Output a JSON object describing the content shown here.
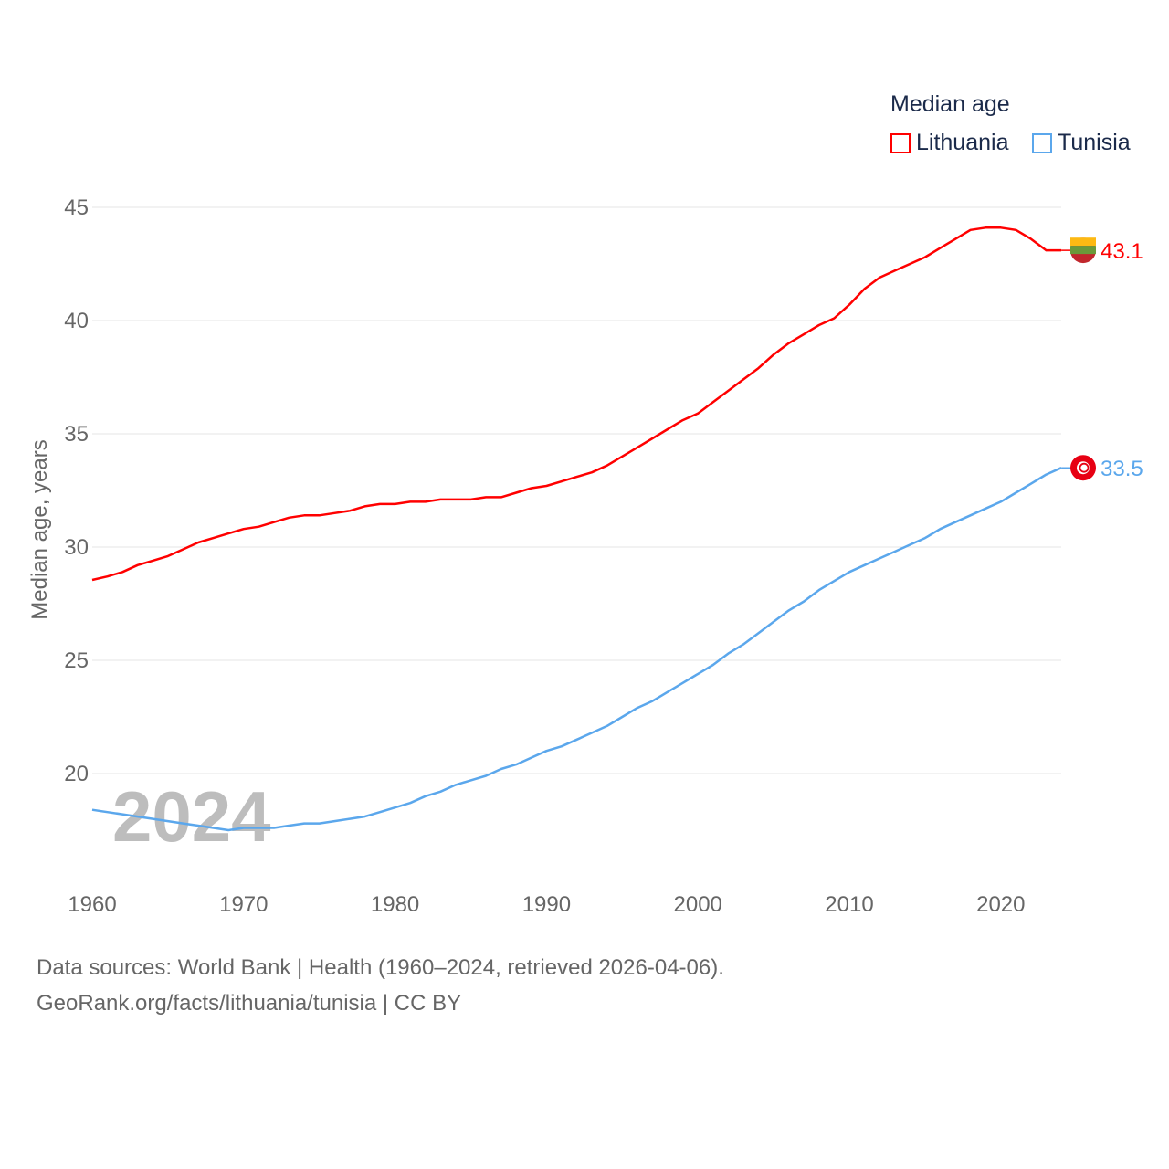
{
  "chart_data": {
    "type": "line",
    "legend_title": "Median age",
    "ylabel": "Median age, years",
    "xlabel": "",
    "ylim": [
      15.5,
      45.8
    ],
    "xlim": [
      1960,
      2024
    ],
    "yticks": [
      "20",
      "25",
      "30",
      "35",
      "40",
      "45"
    ],
    "xticks": [
      "1960",
      "1970",
      "1980",
      "1990",
      "2000",
      "2010",
      "2020"
    ],
    "year_watermark": "2024",
    "grid": true,
    "legend_position": "top-right",
    "x": [
      1960,
      1961,
      1962,
      1963,
      1964,
      1965,
      1966,
      1967,
      1968,
      1969,
      1970,
      1971,
      1972,
      1973,
      1974,
      1975,
      1976,
      1977,
      1978,
      1979,
      1980,
      1981,
      1982,
      1983,
      1984,
      1985,
      1986,
      1987,
      1988,
      1989,
      1990,
      1991,
      1992,
      1993,
      1994,
      1995,
      1996,
      1997,
      1998,
      1999,
      2000,
      2001,
      2002,
      2003,
      2004,
      2005,
      2006,
      2007,
      2008,
      2009,
      2010,
      2011,
      2012,
      2013,
      2014,
      2015,
      2016,
      2017,
      2018,
      2019,
      2020,
      2021,
      2022,
      2023,
      2024
    ],
    "series": [
      {
        "name": "Lithuania",
        "color": "#ff0000",
        "end_label": "43.1",
        "values": [
          28.55,
          28.7,
          28.9,
          29.2,
          29.4,
          29.6,
          29.9,
          30.2,
          30.4,
          30.6,
          30.8,
          30.9,
          31.1,
          31.3,
          31.4,
          31.4,
          31.5,
          31.6,
          31.8,
          31.9,
          31.9,
          32.0,
          32.0,
          32.1,
          32.1,
          32.1,
          32.2,
          32.2,
          32.4,
          32.6,
          32.7,
          32.9,
          33.1,
          33.3,
          33.6,
          34.0,
          34.4,
          34.8,
          35.2,
          35.6,
          35.9,
          36.4,
          36.9,
          37.4,
          37.9,
          38.5,
          39.0,
          39.4,
          39.8,
          40.1,
          40.7,
          41.4,
          41.9,
          42.2,
          42.5,
          42.8,
          43.2,
          43.6,
          44.0,
          44.1,
          44.1,
          44.0,
          43.6,
          43.1,
          43.1
        ]
      },
      {
        "name": "Tunisia",
        "color": "#5ba7ec",
        "end_label": "33.5",
        "values": [
          18.4,
          18.3,
          18.2,
          18.1,
          18.0,
          17.9,
          17.8,
          17.7,
          17.6,
          17.5,
          17.6,
          17.6,
          17.6,
          17.7,
          17.8,
          17.8,
          17.9,
          18.0,
          18.1,
          18.3,
          18.5,
          18.7,
          19.0,
          19.2,
          19.5,
          19.7,
          19.9,
          20.2,
          20.4,
          20.7,
          21.0,
          21.2,
          21.5,
          21.8,
          22.1,
          22.5,
          22.9,
          23.2,
          23.6,
          24.0,
          24.4,
          24.8,
          25.3,
          25.7,
          26.2,
          26.7,
          27.2,
          27.6,
          28.1,
          28.5,
          28.9,
          29.2,
          29.5,
          29.8,
          30.1,
          30.4,
          30.8,
          31.1,
          31.4,
          31.7,
          32.0,
          32.4,
          32.8,
          33.2,
          33.5
        ]
      }
    ]
  },
  "source_line1": "Data sources: World Bank | Health (1960–2024, retrieved 2026-04-06).",
  "source_line2": "GeoRank.org/facts/lithuania/tunisia | CC BY"
}
